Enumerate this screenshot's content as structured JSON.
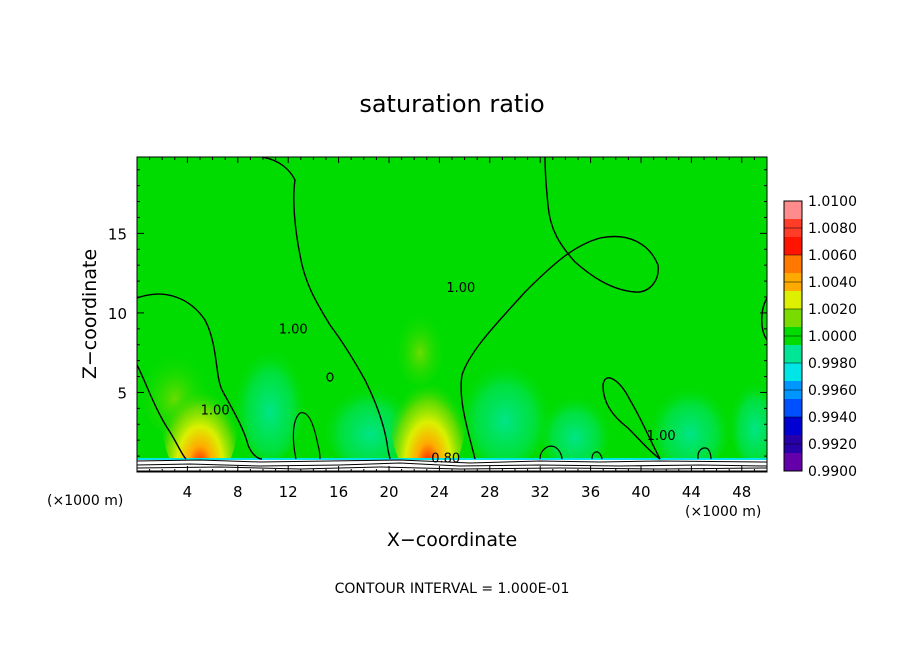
{
  "chart_data": {
    "type": "heatmap",
    "title": "saturation ratio",
    "xlabel": "X−coordinate",
    "ylabel": "Z−coordinate",
    "x_unit": "(×1000 m)",
    "z_unit": "(×1000 m)",
    "xlim": [
      0,
      50
    ],
    "ylim": [
      0,
      19.8
    ],
    "x_ticks": [
      4,
      8,
      12,
      16,
      20,
      24,
      28,
      32,
      36,
      40,
      44,
      48
    ],
    "y_ticks": [
      5,
      10,
      15
    ],
    "colorbar": {
      "levels": [
        "1.0100",
        "1.0080",
        "1.0060",
        "1.0040",
        "1.0020",
        "1.0000",
        "0.9980",
        "0.9960",
        "0.9940",
        "0.9920",
        "0.9900"
      ],
      "colors": [
        "#ff8c8c",
        "#ff3c28",
        "#ff1400",
        "#ff7800",
        "#ffaa00",
        "#dcf000",
        "#78dc00",
        "#00dc00",
        "#00e696",
        "#00e6e6",
        "#0096ff",
        "#0050ff",
        "#0000d2",
        "#2800aa",
        "#6400aa"
      ]
    },
    "background_color": "#00dc00",
    "contour_labels": [
      {
        "text": "1.00",
        "x": 12.4,
        "z": 8.7
      },
      {
        "text": "1.00",
        "x": 25.7,
        "z": 11.3
      },
      {
        "text": "1.00",
        "x": 6.2,
        "z": 3.6
      },
      {
        "text": "1.00",
        "x": 41.6,
        "z": 2.0
      },
      {
        "text": "0.80",
        "x": 24.5,
        "z": 0.6
      }
    ],
    "footer": "CONTOUR INTERVAL = 1.000E-01"
  }
}
